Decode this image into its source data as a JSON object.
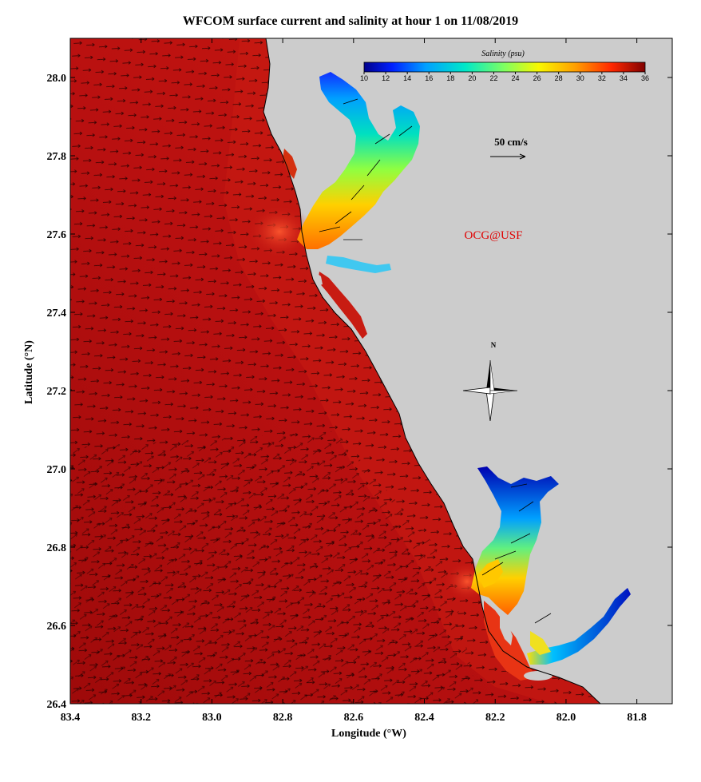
{
  "title": "WFCOM surface current and salinity at hour 1 on 11/08/2019",
  "axes": {
    "xlabel": "Longitude (°W)",
    "ylabel": "Latitude (°N)",
    "lon_range": [
      83.4,
      81.7
    ],
    "lat_range": [
      26.4,
      28.1
    ],
    "x_ticks": [
      "83.4",
      "83.2",
      "83.0",
      "82.8",
      "82.6",
      "82.4",
      "82.2",
      "82.0",
      "81.8"
    ],
    "y_ticks": [
      "28.0",
      "27.8",
      "27.6",
      "27.4",
      "27.2",
      "27.0",
      "26.8",
      "26.6",
      "26.4"
    ]
  },
  "colorbar": {
    "title": "Salinity (psu)",
    "labels": [
      "10",
      "12",
      "14",
      "16",
      "18",
      "20",
      "22",
      "24",
      "26",
      "28",
      "30",
      "32",
      "34",
      "36"
    ],
    "range": [
      10,
      36
    ]
  },
  "scale_arrow": {
    "label": "50 cm/s"
  },
  "credit": {
    "text": "OCG@USF",
    "color": "#e00000"
  },
  "compass": {
    "label": "N"
  },
  "colors": {
    "ocean": "#c01010",
    "land": "#cccccc",
    "fresh": "#0000c8",
    "credit": "#e00000"
  }
}
